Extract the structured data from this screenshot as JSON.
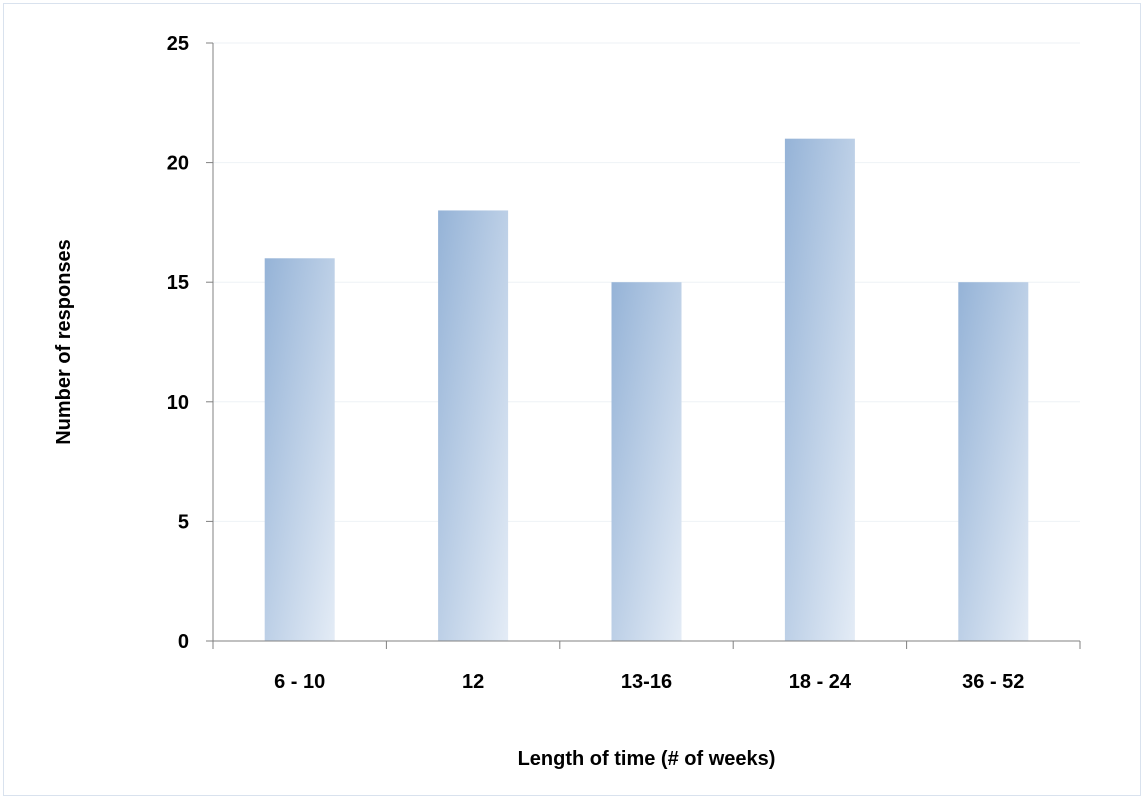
{
  "chart_data": {
    "type": "bar",
    "categories": [
      "6 - 10",
      "12",
      "13-16",
      "18 - 24",
      "36 - 52"
    ],
    "values": [
      16,
      18,
      15,
      21,
      15
    ],
    "title": "",
    "xlabel": "Length of time (# of weeks)",
    "ylabel": "Number of responses",
    "ylim": [
      0,
      25
    ],
    "yticks": [
      0,
      5,
      10,
      15,
      20,
      25
    ],
    "grid": true,
    "legend": "none",
    "colors": {
      "bar_top": "#95b3d7",
      "bar_bottom": "#e4ecf6",
      "gridline": "#eef2f6",
      "axis": "#808080",
      "frame": "#d9e2ee"
    }
  }
}
